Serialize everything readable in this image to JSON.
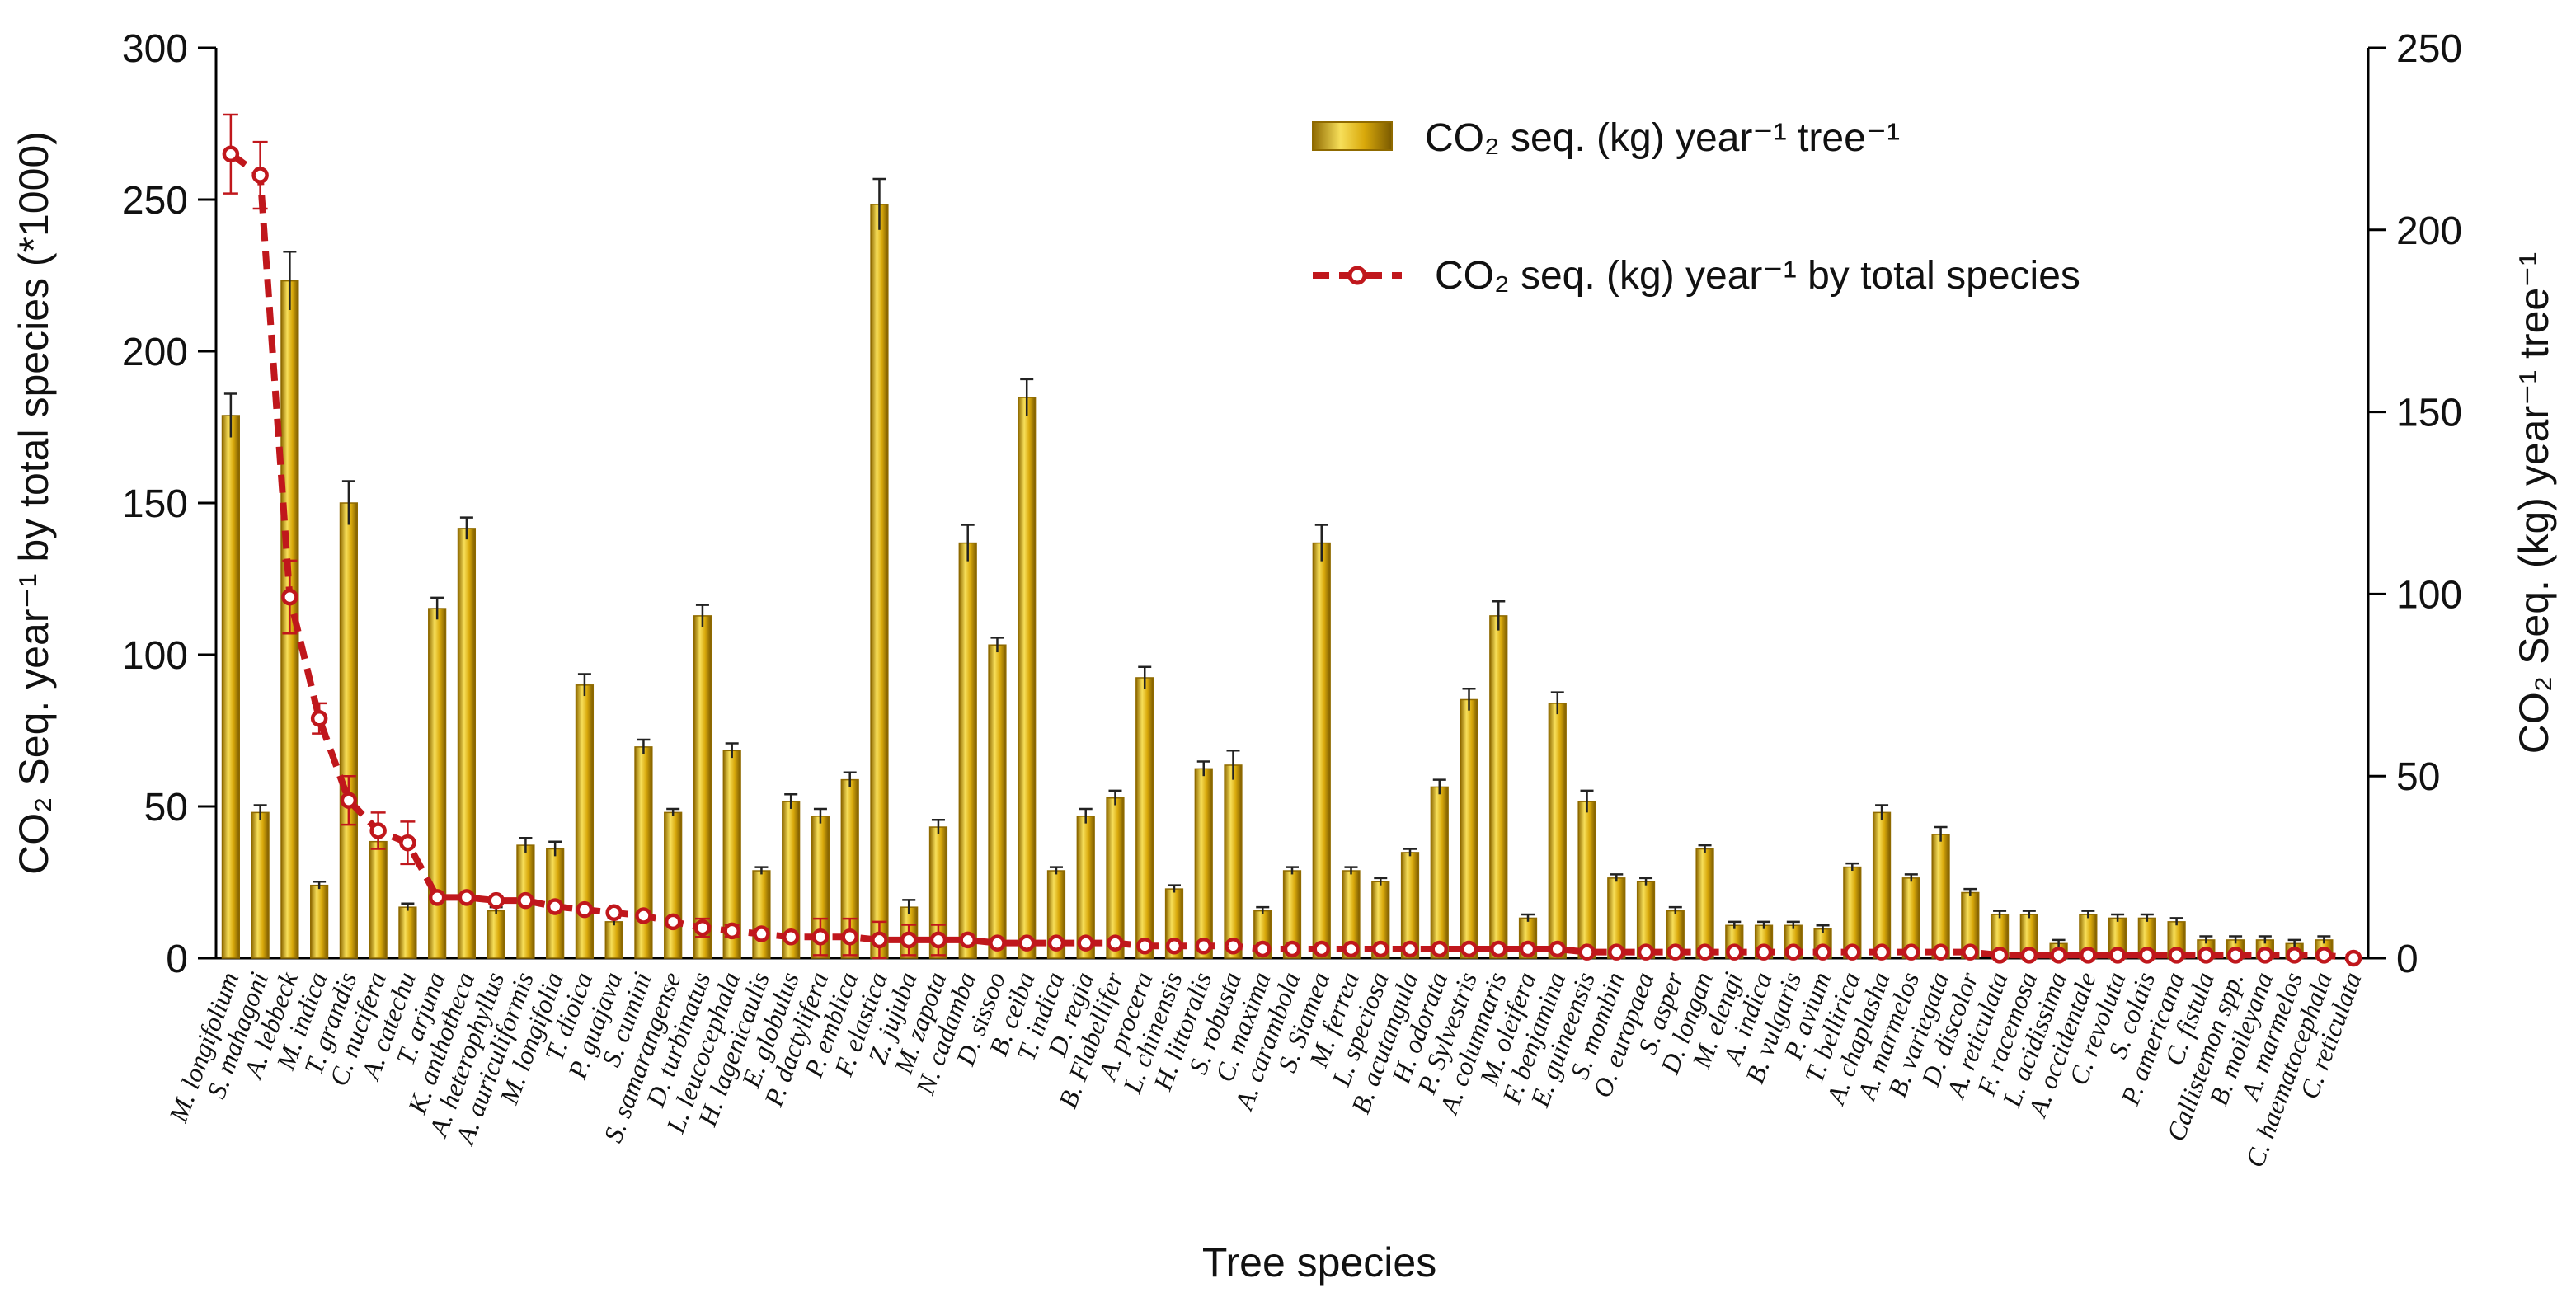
{
  "chart_data": {
    "type": "bar+line",
    "xlabel": "Tree species",
    "ylabel_left": "CO₂ Seq. year⁻¹ by total species (*1000)",
    "ylabel_right": "CO₂ Seq. (kg) year⁻¹ tree⁻¹",
    "ylim_left": [
      0,
      300
    ],
    "ylim_right": [
      0,
      250
    ],
    "yticks_left": [
      "0",
      "50",
      "100",
      "150",
      "200",
      "250",
      "300"
    ],
    "yticks_right": [
      "0",
      "50",
      "100",
      "150",
      "200",
      "250"
    ],
    "colors": {
      "bar": "#d9a90b",
      "bar_light": "#f7df5a",
      "bar_dark": "#8f6a00",
      "line": "#c0171c"
    },
    "legend": [
      {
        "name": "CO₂ seq. (kg) year⁻¹ tree⁻¹"
      },
      {
        "name": "CO₂ seq. (kg) year⁻¹ by total species"
      }
    ],
    "categories": [
      "M. longifolium",
      "S. mahagoni",
      "A. lebbeck",
      "M. indica",
      "T. grandis",
      "C. nucifera",
      "A. catechu",
      "T. arjuna",
      "K. anthotheca",
      "A. heterophyllus",
      "A. auriculiformis",
      "M. longifolia",
      "T. dioica",
      "P. guajava",
      "S. cumini",
      "S. samarangense",
      "D. turbinatus",
      "L. leucocephala",
      "H. lagenicaulis",
      "E. globulus",
      "P. dactylifera",
      "P. emblica",
      "F. elastica",
      "Z. jujuba",
      "M. zapota",
      "N. cadamba",
      "D. sissoo",
      "B. ceiba",
      "T. indica",
      "D. regia",
      "B. Flabellifer",
      "A. procera",
      "L. chinensis",
      "H. littoralis",
      "S. robusta",
      "C. maxima",
      "A. carambola",
      "S. Siamea",
      "M. ferrea",
      "L. speciosa",
      "B. acutangula",
      "H. odorata",
      "P. Sylvestris",
      "A. columnaris",
      "M. oleifera",
      "F. benjamina",
      "E. guineensis",
      "S. mombin",
      "O. europaea",
      "S. asper",
      "D. longan",
      "M. elengi",
      "A. indica",
      "B. vulgaris",
      "P. avium",
      "T. bellirica",
      "A. chaplasha",
      "A. marmelos",
      "B. variegata",
      "D. discolor",
      "A. reticulata",
      "F. racemosa",
      "L. acidissima",
      "A. occidentale",
      "C. revoluta",
      "S. colais",
      "P. americana",
      "C. fistula",
      "Callistemon spp.",
      "B. moileyana",
      "A. marmelos",
      "C. haematocephala",
      "C. reticulata"
    ],
    "series": [
      {
        "name": "CO₂ seq. (kg) year⁻¹ tree⁻¹",
        "axis": "right",
        "values": [
          149,
          40,
          186,
          20,
          125,
          32,
          14,
          96,
          118,
          13,
          31,
          30,
          75,
          10,
          58,
          40,
          94,
          57,
          24,
          43,
          39,
          49,
          207,
          14,
          36,
          114,
          86,
          154,
          24,
          39,
          44,
          77,
          19,
          52,
          53,
          13,
          24,
          114,
          24,
          21,
          29,
          47,
          71,
          94,
          11,
          70,
          43,
          22,
          21,
          13,
          30,
          9,
          9,
          9,
          8,
          25,
          40,
          22,
          34,
          18,
          12,
          12,
          4,
          12,
          11,
          11,
          10,
          5,
          5,
          5,
          4,
          5,
          0
        ],
        "errors": [
          6,
          2,
          8,
          1,
          6,
          2,
          1,
          3,
          3,
          1,
          2,
          2,
          3,
          1,
          2,
          1,
          3,
          2,
          1,
          2,
          2,
          2,
          7,
          2,
          2,
          5,
          2,
          5,
          1,
          2,
          2,
          3,
          1,
          2,
          4,
          1,
          1,
          5,
          1,
          1,
          1,
          2,
          3,
          4,
          1,
          3,
          3,
          1,
          1,
          1,
          1,
          1,
          1,
          1,
          1,
          1,
          2,
          1,
          2,
          1,
          1,
          1,
          1,
          1,
          1,
          1,
          1,
          1,
          1,
          1,
          1,
          1,
          1
        ]
      },
      {
        "name": "CO₂ seq. (kg) year⁻¹ by total species",
        "axis": "left",
        "values": [
          265,
          258,
          119,
          79,
          52,
          42,
          38,
          20,
          20,
          19,
          19,
          17,
          16,
          15,
          14,
          12,
          10,
          9,
          8,
          7,
          7,
          7,
          6,
          6,
          6,
          6,
          5,
          5,
          5,
          5,
          5,
          4,
          4,
          4,
          4,
          3,
          3,
          3,
          3,
          3,
          3,
          3,
          3,
          3,
          3,
          3,
          2,
          2,
          2,
          2,
          2,
          2,
          2,
          2,
          2,
          2,
          2,
          2,
          2,
          2,
          1,
          1,
          1,
          1,
          1,
          1,
          1,
          1,
          1,
          1,
          1,
          1,
          0
        ],
        "errors": [
          13,
          11,
          12,
          5,
          8,
          6,
          7,
          0,
          0,
          0,
          0,
          0,
          0,
          0,
          0,
          0,
          3,
          2,
          0,
          0,
          6,
          6,
          6,
          5,
          5,
          0,
          0,
          0,
          0,
          0,
          0,
          0,
          0,
          0,
          0,
          0,
          0,
          0,
          0,
          0,
          0,
          0,
          0,
          0,
          0,
          0,
          0,
          0,
          0,
          0,
          0,
          0,
          0,
          0,
          0,
          0,
          0,
          0,
          0,
          0,
          0,
          0,
          0,
          0,
          0,
          0,
          0,
          0,
          0,
          0,
          0,
          0,
          0
        ]
      }
    ]
  }
}
